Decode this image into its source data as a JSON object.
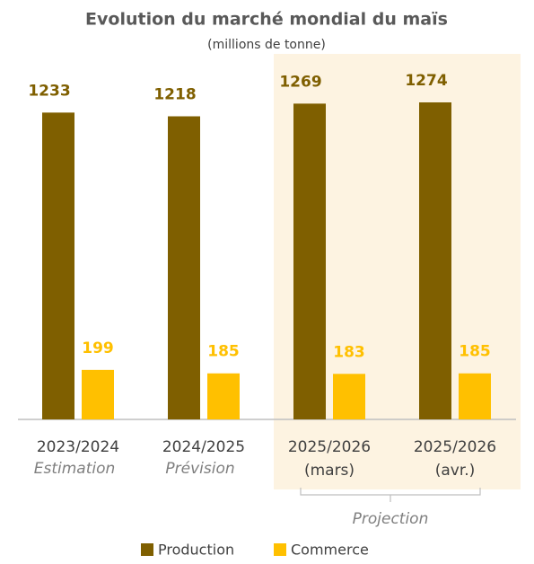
{
  "chart_data": {
    "type": "bar",
    "title": "Evolution du marché mondial du maïs",
    "subtitle": "(millions de tonne)",
    "categories": [
      "2023/2024",
      "2024/2025",
      "2025/2026",
      "2025/2026"
    ],
    "category_sublabels": [
      "Estimation",
      "Prévision",
      "(mars)",
      "(avr.)"
    ],
    "group_label": "Projection",
    "series": [
      {
        "name": "Production",
        "color": "#7f5f00",
        "values": [
          1233,
          1218,
          1269,
          1274
        ]
      },
      {
        "name": "Commerce",
        "color": "#ffc000",
        "values": [
          199,
          185,
          183,
          185
        ]
      }
    ],
    "legend": "bottom"
  }
}
